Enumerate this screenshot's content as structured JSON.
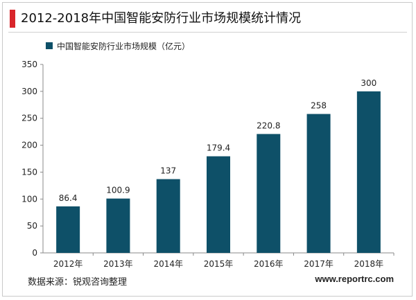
{
  "title": "2012-2018年中国智能安防行业市场规模统计情况",
  "footer": {
    "source": "数据来源：锐观咨询整理",
    "website": "www.reportrc.com"
  },
  "colors": {
    "bar": "#0e5068",
    "accent": "#d9262b"
  },
  "chart_data": {
    "type": "bar",
    "categories": [
      "2012年",
      "2013年",
      "2014年",
      "2015年",
      "2016年",
      "2017年",
      "2018年"
    ],
    "series": [
      {
        "name": "中国智能安防行业市场规模（亿元）",
        "values": [
          86.4,
          100.9,
          137,
          179.4,
          220.8,
          258,
          300
        ]
      }
    ],
    "data_labels": [
      "86.4",
      "100.9",
      "137",
      "179.4",
      "220.8",
      "258",
      "300"
    ],
    "yticks": [
      "0",
      "50",
      "100",
      "150",
      "200",
      "250",
      "300",
      "350"
    ],
    "ylim": [
      0,
      350
    ],
    "grid": false,
    "legend": "top-left"
  }
}
